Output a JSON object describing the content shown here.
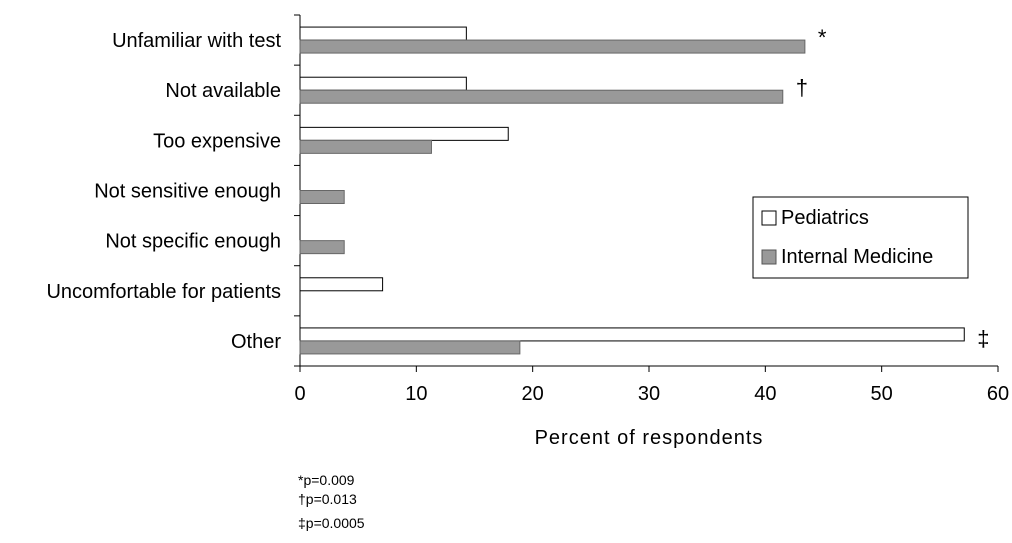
{
  "chart_data": {
    "type": "bar",
    "orientation": "horizontal",
    "categories": [
      "Unfamiliar with test",
      "Not available",
      "Too expensive",
      "Not sensitive enough",
      "Not specific enough",
      "Uncomfortable for patients",
      "Other"
    ],
    "series": [
      {
        "name": "Pediatrics",
        "color": "#ffffff",
        "values": [
          14.3,
          14.3,
          17.9,
          0,
          0,
          7.1,
          57.1
        ]
      },
      {
        "name": "Internal Medicine",
        "color": "#999999",
        "values": [
          43.4,
          41.5,
          11.3,
          3.8,
          3.8,
          0,
          18.9
        ]
      }
    ],
    "markers": [
      "*",
      "†",
      "",
      "",
      "",
      "",
      "‡"
    ],
    "xlabel": "Percent of respondents",
    "ylabel": "",
    "xlim": [
      0,
      60
    ],
    "xticks": [
      0,
      10,
      20,
      30,
      40,
      50,
      60
    ],
    "grid": false,
    "legend_position": "right"
  },
  "footnotes": [
    "*p=0.009",
    "†p=0.013",
    "‡p=0.0005"
  ]
}
